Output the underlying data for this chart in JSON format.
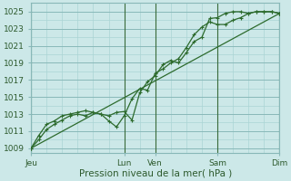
{
  "xlabel": "Pression niveau de la mer( hPa )",
  "background_color": "#cce8e8",
  "grid_minor_color": "#aad4d4",
  "grid_major_color": "#88b8b8",
  "line_color": "#2d6b2d",
  "ylim": [
    1008.5,
    1026.0
  ],
  "xlim": [
    0,
    96
  ],
  "yticks": [
    1009,
    1011,
    1013,
    1015,
    1017,
    1019,
    1021,
    1023,
    1025
  ],
  "day_tick_pos": [
    0,
    36,
    48,
    72,
    96
  ],
  "day_labels": [
    "Jeu",
    "Lun",
    "Ven",
    "Sam",
    "Dim"
  ],
  "series1_x": [
    0,
    3,
    6,
    9,
    12,
    15,
    18,
    21,
    24,
    27,
    30,
    33,
    36,
    39,
    42,
    45,
    48,
    51,
    54,
    57,
    60,
    63,
    66,
    69,
    72,
    75,
    78,
    81,
    84,
    87,
    90,
    93,
    96
  ],
  "series1_y": [
    1009.0,
    1010.5,
    1011.8,
    1012.2,
    1012.8,
    1013.0,
    1013.2,
    1013.4,
    1013.2,
    1013.0,
    1012.8,
    1013.2,
    1013.3,
    1012.3,
    1015.5,
    1016.8,
    1017.5,
    1018.8,
    1019.3,
    1019.0,
    1020.2,
    1021.5,
    1022.0,
    1024.2,
    1024.3,
    1024.8,
    1025.0,
    1025.0,
    1024.8,
    1025.0,
    1025.0,
    1025.0,
    1024.8
  ],
  "series2_x": [
    0,
    3,
    6,
    9,
    12,
    15,
    18,
    21,
    24,
    27,
    30,
    33,
    36,
    39,
    42,
    45,
    48,
    51,
    54,
    57,
    60,
    63,
    66,
    69,
    72,
    75,
    78,
    81,
    84,
    87,
    90,
    93,
    96
  ],
  "series2_y": [
    1009.0,
    1010.0,
    1011.2,
    1011.8,
    1012.3,
    1012.8,
    1013.0,
    1012.8,
    1013.2,
    1013.0,
    1012.2,
    1011.5,
    1012.8,
    1014.8,
    1016.0,
    1015.8,
    1017.8,
    1018.3,
    1019.0,
    1019.5,
    1020.8,
    1022.3,
    1023.2,
    1023.8,
    1023.5,
    1023.5,
    1024.0,
    1024.3,
    1024.8,
    1025.0,
    1025.0,
    1025.0,
    1024.8
  ],
  "series3_x": [
    0,
    96
  ],
  "series3_y": [
    1009.0,
    1024.8
  ],
  "marker": "+"
}
